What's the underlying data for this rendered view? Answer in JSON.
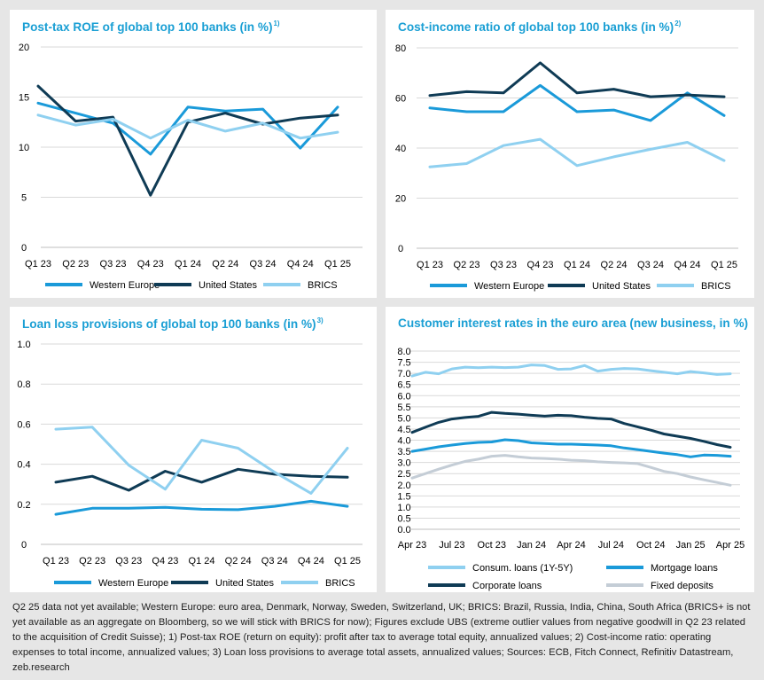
{
  "colors": {
    "western_europe": "#1a9ad9",
    "united_states": "#0f3b55",
    "brics": "#8fd0f0",
    "fixed_deposits": "#c4cdd6",
    "title": "#1a9fd4",
    "grid": "#d9d9d9",
    "axis": "#bfbfbf"
  },
  "footnote": "Q2 25 data not yet available; Western Europe: euro area, Denmark, Norway, Sweden, Switzerland, UK; BRICS: Brazil, Russia, India, China, South Africa (BRICS+ is not yet available as an aggregate on Bloomberg, so we will stick with BRICS for now); Figures exclude UBS (extreme outlier values from negative goodwill in Q2 23 related to the acquisition of Credit Suisse); 1) Post-tax ROE (return on equity): profit after tax to average total equity, annualized values; 2) Cost-income ratio: operating expenses to total income, annualized values; 3) Loan loss provisions to average total assets, annualized values; Sources: ECB, Fitch Connect, Refinitiv Datastream, zeb.research",
  "chart_data": [
    {
      "id": "roe",
      "type": "line",
      "title": "Post-tax ROE of global top 100 banks (in %)",
      "title_sup": "1)",
      "categories": [
        "Q1 23",
        "Q2 23",
        "Q3 23",
        "Q4 23",
        "Q1 24",
        "Q2 24",
        "Q3 24",
        "Q4 24",
        "Q1 25"
      ],
      "ylim": [
        0,
        20
      ],
      "yticks": [
        0,
        5,
        10,
        15,
        20
      ],
      "ytick_labels": [
        "0",
        "5",
        "10",
        "15",
        "20"
      ],
      "series": [
        {
          "name": "Western Europe",
          "color_key": "western_europe",
          "values": [
            14.4,
            13.4,
            12.4,
            9.3,
            14.0,
            13.6,
            13.8,
            9.9,
            14.0
          ]
        },
        {
          "name": "United States",
          "color_key": "united_states",
          "values": [
            16.1,
            12.6,
            13.0,
            5.2,
            12.5,
            13.4,
            12.3,
            12.9,
            13.2
          ]
        },
        {
          "name": "BRICS",
          "color_key": "brics",
          "values": [
            13.2,
            12.2,
            12.8,
            10.9,
            12.7,
            11.6,
            12.4,
            10.9,
            11.5
          ]
        }
      ],
      "legend": [
        "Western Europe",
        "United States",
        "BRICS"
      ]
    },
    {
      "id": "cir",
      "type": "line",
      "title": "Cost-income ratio of global top 100 banks (in %)",
      "title_sup": "2)",
      "categories": [
        "Q1 23",
        "Q2 23",
        "Q3 23",
        "Q4 23",
        "Q1 24",
        "Q2 24",
        "Q3 24",
        "Q4 24",
        "Q1 25"
      ],
      "ylim": [
        0,
        80
      ],
      "yticks": [
        0,
        20,
        40,
        60,
        80
      ],
      "ytick_labels": [
        "0",
        "20",
        "40",
        "60",
        "80"
      ],
      "series": [
        {
          "name": "Western Europe",
          "color_key": "western_europe",
          "values": [
            56,
            54.5,
            54.5,
            65,
            54.5,
            55.2,
            51,
            62,
            53
          ]
        },
        {
          "name": "United States",
          "color_key": "united_states",
          "values": [
            61,
            62.5,
            62,
            74,
            62,
            63.5,
            60.5,
            61.2,
            60.5
          ]
        },
        {
          "name": "BRICS",
          "color_key": "brics",
          "values": [
            32.5,
            33.8,
            41,
            43.5,
            33,
            36.5,
            39.5,
            42.3,
            35
          ]
        }
      ],
      "legend": [
        "Western Europe",
        "United States",
        "BRICS"
      ]
    },
    {
      "id": "llp",
      "type": "line",
      "title": "Loan loss provisions of global top 100 banks (in %)",
      "title_sup": "3)",
      "categories": [
        "Q1 23",
        "Q2 23",
        "Q3 23",
        "Q4 23",
        "Q1 24",
        "Q2 24",
        "Q3 24",
        "Q4 24",
        "Q1 25"
      ],
      "ylim": [
        0,
        1.0
      ],
      "yticks": [
        0,
        0.2,
        0.4,
        0.6,
        0.8,
        1.0
      ],
      "ytick_labels": [
        "0",
        "0.2",
        "0.4",
        "0.6",
        "0.8",
        "1.0"
      ],
      "series": [
        {
          "name": "Western Europe",
          "color_key": "western_europe",
          "values": [
            0.15,
            0.18,
            0.18,
            0.185,
            0.175,
            0.173,
            0.19,
            0.215,
            0.19
          ]
        },
        {
          "name": "United States",
          "color_key": "united_states",
          "values": [
            0.31,
            0.34,
            0.27,
            0.365,
            0.31,
            0.375,
            0.35,
            0.34,
            0.335
          ]
        },
        {
          "name": "BRICS",
          "color_key": "brics",
          "values": [
            0.575,
            0.585,
            0.395,
            0.275,
            0.52,
            0.48,
            0.36,
            0.255,
            0.48
          ]
        }
      ],
      "legend": [
        "Western Europe",
        "United States",
        "BRICS"
      ]
    },
    {
      "id": "rates",
      "type": "line",
      "title": "Customer interest rates in the euro area (new business, in %)",
      "title_sup": "",
      "categories": [
        "Apr 23",
        "May 23",
        "Jun 23",
        "Jul 23",
        "Aug 23",
        "Sep 23",
        "Oct 23",
        "Nov 23",
        "Dec 23",
        "Jan 24",
        "Feb 24",
        "Mar 24",
        "Apr 24",
        "May 24",
        "Jun 24",
        "Jul 24",
        "Aug 24",
        "Sep 24",
        "Oct 24",
        "Nov 24",
        "Dec 24",
        "Jan 25",
        "Feb 25",
        "Mar 25",
        "Apr 25"
      ],
      "xtick_labels": [
        "Apr 23",
        "Jul 23",
        "Oct 23",
        "Jan 24",
        "Apr 24",
        "Jul 24",
        "Oct 24",
        "Jan 25",
        "Apr 25"
      ],
      "xtick_every": 3,
      "ylim": [
        0,
        8.0
      ],
      "yticks": [
        0,
        0.5,
        1.0,
        1.5,
        2.0,
        2.5,
        3.0,
        3.5,
        4.0,
        4.5,
        5.0,
        5.5,
        6.0,
        6.5,
        7.0,
        7.5,
        8.0
      ],
      "ytick_labels": [
        "0.0",
        "0.5",
        "1.0",
        "1.5",
        "2.0",
        "2.5",
        "3.0",
        "3.5",
        "4.0",
        "4.5",
        "5.0",
        "5.5",
        "6.0",
        "6.5",
        "7.0",
        "7.5",
        "8.0"
      ],
      "series": [
        {
          "name": "Consum. loans (1Y-5Y)",
          "color_key": "brics",
          "values": [
            6.88,
            7.05,
            6.98,
            7.2,
            7.28,
            7.25,
            7.28,
            7.26,
            7.28,
            7.38,
            7.35,
            7.18,
            7.2,
            7.35,
            7.1,
            7.18,
            7.22,
            7.2,
            7.12,
            7.05,
            6.98,
            7.08,
            7.02,
            6.95,
            6.98
          ]
        },
        {
          "name": "Mortgage loans",
          "color_key": "western_europe",
          "values": [
            3.5,
            3.6,
            3.7,
            3.78,
            3.85,
            3.9,
            3.92,
            4.02,
            3.98,
            3.88,
            3.85,
            3.82,
            3.82,
            3.8,
            3.78,
            3.75,
            3.65,
            3.58,
            3.5,
            3.42,
            3.35,
            3.25,
            3.33,
            3.32,
            3.28
          ]
        },
        {
          "name": "Corporate loans",
          "color_key": "united_states",
          "values": [
            4.35,
            4.58,
            4.8,
            4.95,
            5.02,
            5.07,
            5.25,
            5.2,
            5.17,
            5.12,
            5.08,
            5.12,
            5.1,
            5.03,
            4.98,
            4.95,
            4.75,
            4.6,
            4.45,
            4.28,
            4.18,
            4.08,
            3.95,
            3.8,
            3.68
          ]
        },
        {
          "name": "Fixed deposits",
          "color_key": "fixed_deposits",
          "values": [
            2.3,
            2.5,
            2.7,
            2.88,
            3.05,
            3.15,
            3.28,
            3.32,
            3.25,
            3.2,
            3.18,
            3.15,
            3.1,
            3.08,
            3.03,
            3.0,
            2.98,
            2.95,
            2.78,
            2.6,
            2.5,
            2.35,
            2.22,
            2.1,
            1.98
          ]
        }
      ],
      "legend": [
        "Consum. loans (1Y-5Y)",
        "Mortgage loans",
        "Corporate loans",
        "Fixed deposits"
      ]
    }
  ]
}
